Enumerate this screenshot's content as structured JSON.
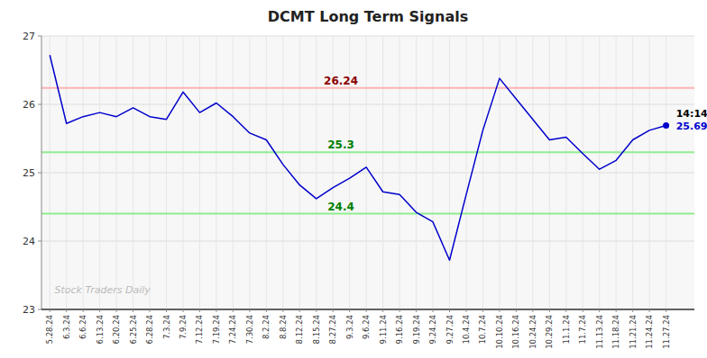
{
  "chart_data": {
    "type": "line",
    "title": "DCMT Long Term Signals",
    "categories": [
      "5.28.24",
      "6.3.24",
      "6.6.24",
      "6.13.24",
      "6.20.24",
      "6.25.24",
      "6.28.24",
      "7.3.24",
      "7.9.24",
      "7.12.24",
      "7.19.24",
      "7.24.24",
      "7.30.24",
      "8.2.24",
      "8.8.24",
      "8.12.24",
      "8.15.24",
      "8.27.24",
      "9.3.24",
      "9.6.24",
      "9.11.24",
      "9.16.24",
      "9.19.24",
      "9.24.24",
      "9.27.24",
      "10.4.24",
      "10.7.24",
      "10.10.24",
      "10.16.24",
      "10.24.24",
      "10.29.24",
      "11.1.24",
      "11.7.24",
      "11.13.24",
      "11.18.24",
      "11.21.24",
      "11.24.24",
      "11.27.24"
    ],
    "values": [
      26.72,
      25.72,
      25.82,
      25.88,
      25.82,
      25.95,
      25.82,
      25.78,
      26.18,
      25.88,
      26.02,
      25.82,
      25.58,
      25.48,
      25.12,
      24.82,
      24.62,
      24.78,
      24.92,
      25.08,
      24.72,
      24.68,
      24.42,
      24.28,
      23.72,
      24.68,
      25.62,
      26.38,
      26.08,
      25.78,
      25.48,
      25.52,
      25.28,
      25.05,
      25.18,
      25.48,
      25.62,
      25.69
    ],
    "color": "#0000cc",
    "ylim": [
      23,
      27
    ],
    "yticks": [
      23,
      24,
      25,
      26,
      27
    ],
    "grid": true,
    "reference_lines": [
      {
        "value": 26.24,
        "label": "26.24",
        "color": "#ffb3b3",
        "label_color": "darkred"
      },
      {
        "value": 25.3,
        "label": "25.3",
        "color": "#90ee90",
        "label_color": "green"
      },
      {
        "value": 24.4,
        "label": "24.4",
        "color": "#90ee90",
        "label_color": "green"
      }
    ],
    "last_point": {
      "time": "14:14",
      "label": "25.69"
    },
    "watermark": "Stock Traders Daily"
  }
}
